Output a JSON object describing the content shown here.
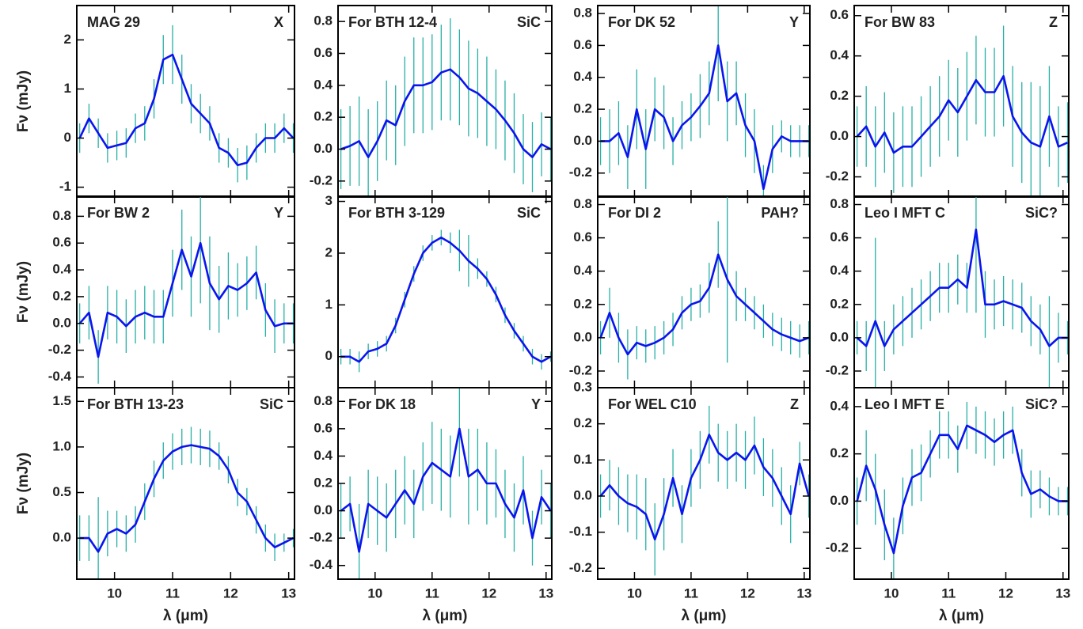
{
  "chart_data": [
    {
      "type": "line",
      "title": "MAG 29",
      "annotation": "X",
      "ylabel": "Fν (mJy)",
      "color": "#0a14ee",
      "error_color": "#27b0a6",
      "x": [
        9.4,
        9.56,
        9.72,
        9.88,
        10.04,
        10.2,
        10.36,
        10.52,
        10.68,
        10.84,
        11.0,
        11.16,
        11.32,
        11.48,
        11.64,
        11.8,
        11.96,
        12.12,
        12.28,
        12.44,
        12.6,
        12.76,
        12.92,
        13.08
      ],
      "values": [
        0,
        0.4,
        0.1,
        -0.2,
        -0.15,
        -0.1,
        0.2,
        0.3,
        0.8,
        1.6,
        1.7,
        1.2,
        0.7,
        0.5,
        0.3,
        -0.2,
        -0.3,
        -0.55,
        -0.5,
        -0.2,
        0,
        0,
        0.2,
        0
      ],
      "errors": [
        0.3,
        0.3,
        0.3,
        0.3,
        0.3,
        0.3,
        0.3,
        0.35,
        0.4,
        0.5,
        0.6,
        0.5,
        0.4,
        0.4,
        0.35,
        0.3,
        0.3,
        0.35,
        0.35,
        0.3,
        0.3,
        0.3,
        0.3,
        0.3
      ],
      "xlim": [
        9.35,
        13.1
      ],
      "xticks": [
        10,
        11,
        12,
        13
      ],
      "ylim": [
        -1.2,
        2.7
      ],
      "yticks": [
        -1,
        0,
        1,
        2
      ]
    },
    {
      "type": "line",
      "title": "For BTH 12-4",
      "annotation": "SiC",
      "color": "#0a14ee",
      "error_color": "#27b0a6",
      "x": [
        9.4,
        9.56,
        9.72,
        9.88,
        10.04,
        10.2,
        10.36,
        10.52,
        10.68,
        10.84,
        11.0,
        11.16,
        11.32,
        11.48,
        11.64,
        11.8,
        11.96,
        12.12,
        12.28,
        12.44,
        12.6,
        12.76,
        12.92,
        13.08
      ],
      "values": [
        0,
        0.02,
        0.05,
        -0.05,
        0.05,
        0.18,
        0.15,
        0.3,
        0.4,
        0.4,
        0.42,
        0.48,
        0.5,
        0.45,
        0.38,
        0.35,
        0.3,
        0.25,
        0.18,
        0.1,
        0,
        -0.05,
        0.03,
        0
      ],
      "errors": [
        0.25,
        0.25,
        0.28,
        0.3,
        0.25,
        0.25,
        0.25,
        0.28,
        0.3,
        0.3,
        0.3,
        0.3,
        0.32,
        0.3,
        0.3,
        0.28,
        0.28,
        0.25,
        0.25,
        0.25,
        0.22,
        0.22,
        0.2,
        0.2
      ],
      "xlim": [
        9.35,
        13.1
      ],
      "xticks": [
        10,
        11,
        12,
        13
      ],
      "ylim": [
        -0.3,
        0.9
      ],
      "yticks": [
        -0.2,
        {
          "value": 0,
          "label": "0.0"
        },
        0.2,
        0.4,
        0.6,
        0.8
      ]
    },
    {
      "type": "line",
      "title": "For DK 52",
      "annotation": "Y",
      "color": "#0a14ee",
      "error_color": "#27b0a6",
      "x": [
        9.4,
        9.56,
        9.72,
        9.88,
        10.04,
        10.2,
        10.36,
        10.52,
        10.68,
        10.84,
        11.0,
        11.16,
        11.32,
        11.48,
        11.64,
        11.8,
        11.96,
        12.12,
        12.28,
        12.44,
        12.6,
        12.76,
        12.92,
        13.08
      ],
      "values": [
        0,
        0,
        0.05,
        -0.1,
        0.2,
        -0.05,
        0.2,
        0.15,
        0,
        0.1,
        0.15,
        0.22,
        0.3,
        0.6,
        0.25,
        0.3,
        0.1,
        0,
        -0.3,
        -0.05,
        0.03,
        0,
        0,
        0
      ],
      "errors": [
        0.15,
        0.2,
        0.2,
        0.2,
        0.25,
        0.25,
        0.2,
        0.2,
        0.15,
        0.15,
        0.15,
        0.2,
        0.2,
        0.35,
        0.25,
        0.2,
        0.2,
        0.2,
        0.15,
        0.15,
        0.1,
        0.1,
        0.1,
        0.1
      ],
      "xlim": [
        9.35,
        13.1
      ],
      "xticks": [
        10,
        11,
        12,
        13
      ],
      "ylim": [
        -0.35,
        0.85
      ],
      "yticks": [
        -0.2,
        {
          "value": 0,
          "label": "0.0"
        },
        0.2,
        0.4,
        0.6,
        0.8
      ]
    },
    {
      "type": "line",
      "title": "For BW 83",
      "annotation": "Z",
      "color": "#0a14ee",
      "error_color": "#27b0a6",
      "x": [
        9.4,
        9.56,
        9.72,
        9.88,
        10.04,
        10.2,
        10.36,
        10.52,
        10.68,
        10.84,
        11.0,
        11.16,
        11.32,
        11.48,
        11.64,
        11.8,
        11.96,
        12.12,
        12.28,
        12.44,
        12.6,
        12.76,
        12.92,
        13.08
      ],
      "values": [
        0,
        0.05,
        -0.05,
        0.02,
        -0.08,
        -0.05,
        -0.05,
        0,
        0.05,
        0.1,
        0.18,
        0.12,
        0.2,
        0.28,
        0.22,
        0.22,
        0.3,
        0.1,
        0.02,
        -0.03,
        -0.05,
        0.1,
        -0.05,
        -0.03
      ],
      "errors": [
        0.15,
        0.2,
        0.2,
        0.2,
        0.2,
        0.2,
        0.2,
        0.2,
        0.2,
        0.2,
        0.2,
        0.22,
        0.22,
        0.22,
        0.22,
        0.22,
        0.25,
        0.25,
        0.25,
        0.3,
        0.3,
        0.25,
        0.2,
        0.2
      ],
      "xlim": [
        9.35,
        13.1
      ],
      "xticks": [
        10,
        11,
        12,
        13
      ],
      "ylim": [
        -0.3,
        0.65
      ],
      "yticks": [
        -0.2,
        {
          "value": 0,
          "label": "0.0"
        },
        0.2,
        0.4,
        0.6
      ]
    },
    {
      "type": "line",
      "title": "For BW 2",
      "annotation": "Y",
      "ylabel": "Fν (mJy)",
      "color": "#0a14ee",
      "error_color": "#27b0a6",
      "x": [
        9.4,
        9.56,
        9.72,
        9.88,
        10.04,
        10.2,
        10.36,
        10.52,
        10.68,
        10.84,
        11.0,
        11.16,
        11.32,
        11.48,
        11.64,
        11.8,
        11.96,
        12.12,
        12.28,
        12.44,
        12.6,
        12.76,
        12.92,
        13.08
      ],
      "values": [
        0,
        0.08,
        -0.25,
        0.08,
        0.05,
        -0.02,
        0.05,
        0.08,
        0.05,
        0.05,
        0.3,
        0.55,
        0.35,
        0.6,
        0.3,
        0.18,
        0.28,
        0.25,
        0.3,
        0.38,
        0.1,
        -0.02,
        0,
        0
      ],
      "errors": [
        0.15,
        0.2,
        0.2,
        0.2,
        0.2,
        0.2,
        0.2,
        0.2,
        0.2,
        0.2,
        0.25,
        0.3,
        0.3,
        0.45,
        0.35,
        0.25,
        0.25,
        0.2,
        0.2,
        0.2,
        0.2,
        0.2,
        0.15,
        0.15
      ],
      "xlim": [
        9.35,
        13.1
      ],
      "xticks": [
        10,
        11,
        12,
        13
      ],
      "ylim": [
        -0.48,
        0.95
      ],
      "yticks": [
        -0.4,
        -0.2,
        {
          "value": 0,
          "label": "0.0"
        },
        0.2,
        0.4,
        0.6,
        0.8
      ]
    },
    {
      "type": "line",
      "title": "For BTH 3-129",
      "annotation": "SiC",
      "color": "#0a14ee",
      "error_color": "#27b0a6",
      "x": [
        9.4,
        9.56,
        9.72,
        9.88,
        10.04,
        10.2,
        10.36,
        10.52,
        10.68,
        10.84,
        11.0,
        11.16,
        11.32,
        11.48,
        11.64,
        11.8,
        11.96,
        12.12,
        12.28,
        12.44,
        12.6,
        12.76,
        12.92,
        13.08
      ],
      "values": [
        0,
        0,
        -0.1,
        0.1,
        0.15,
        0.25,
        0.6,
        1.1,
        1.6,
        2.0,
        2.2,
        2.3,
        2.2,
        2.05,
        1.85,
        1.7,
        1.5,
        1.2,
        0.8,
        0.5,
        0.25,
        0,
        -0.1,
        0
      ],
      "errors": [
        0.15,
        0.15,
        0.2,
        0.15,
        0.15,
        0.15,
        0.15,
        0.15,
        0.15,
        0.15,
        0.15,
        0.15,
        0.2,
        0.4,
        0.5,
        0.2,
        0.15,
        0.15,
        0.15,
        0.15,
        0.15,
        0.15,
        0.15,
        0.1
      ],
      "xlim": [
        9.35,
        13.1
      ],
      "xticks": [
        10,
        11,
        12,
        13
      ],
      "ylim": [
        -0.6,
        3.1
      ],
      "yticks": [
        0,
        1,
        2,
        3
      ]
    },
    {
      "type": "line",
      "title": "For DI 2",
      "annotation": "PAH?",
      "color": "#0a14ee",
      "error_color": "#27b0a6",
      "x": [
        9.4,
        9.56,
        9.72,
        9.88,
        10.04,
        10.2,
        10.36,
        10.52,
        10.68,
        10.84,
        11.0,
        11.16,
        11.32,
        11.48,
        11.64,
        11.8,
        11.96,
        12.12,
        12.28,
        12.44,
        12.6,
        12.76,
        12.92,
        13.08
      ],
      "values": [
        0,
        0.15,
        0,
        -0.1,
        -0.03,
        -0.05,
        -0.03,
        0,
        0.05,
        0.15,
        0.2,
        0.22,
        0.3,
        0.5,
        0.35,
        0.25,
        0.2,
        0.15,
        0.1,
        0.05,
        0.02,
        0,
        -0.02,
        0
      ],
      "errors": [
        0.1,
        0.15,
        0.15,
        0.15,
        0.1,
        0.1,
        0.1,
        0.1,
        0.1,
        0.1,
        0.1,
        0.1,
        0.15,
        0.2,
        0.5,
        0.15,
        0.1,
        0.1,
        0.1,
        0.1,
        0.1,
        0.1,
        0.1,
        0.1
      ],
      "xlim": [
        9.35,
        13.1
      ],
      "xticks": [
        10,
        11,
        12,
        13
      ],
      "ylim": [
        -0.3,
        0.85
      ],
      "yticks": [
        -0.2,
        {
          "value": 0,
          "label": "0.0"
        },
        0.2,
        0.4,
        0.6,
        0.8
      ]
    },
    {
      "type": "line",
      "title": "Leo I MFT C",
      "annotation": "SiC?",
      "color": "#0a14ee",
      "error_color": "#27b0a6",
      "x": [
        9.4,
        9.56,
        9.72,
        9.88,
        10.04,
        10.2,
        10.36,
        10.52,
        10.68,
        10.84,
        11.0,
        11.16,
        11.32,
        11.48,
        11.64,
        11.8,
        11.96,
        12.12,
        12.28,
        12.44,
        12.6,
        12.76,
        12.92,
        13.08
      ],
      "values": [
        0,
        -0.05,
        0.1,
        -0.05,
        0.05,
        0.1,
        0.15,
        0.2,
        0.25,
        0.3,
        0.3,
        0.35,
        0.3,
        0.65,
        0.2,
        0.2,
        0.22,
        0.2,
        0.18,
        0.1,
        0.05,
        -0.05,
        0,
        0
      ],
      "errors": [
        0.1,
        0.15,
        0.5,
        0.15,
        0.15,
        0.15,
        0.15,
        0.15,
        0.15,
        0.15,
        0.15,
        0.15,
        0.15,
        0.5,
        0.2,
        0.15,
        0.15,
        0.15,
        0.15,
        0.15,
        0.15,
        0.3,
        0.15,
        0.1
      ],
      "xlim": [
        9.35,
        13.1
      ],
      "xticks": [
        10,
        11,
        12,
        13
      ],
      "ylim": [
        -0.3,
        0.85
      ],
      "yticks": [
        -0.2,
        {
          "value": 0,
          "label": "0.0"
        },
        0.2,
        0.4,
        0.6,
        0.8
      ]
    },
    {
      "type": "line",
      "title": "For BTH 13-23",
      "annotation": "SiC",
      "ylabel": "Fν (mJy)",
      "xlabel": "λ (μm)",
      "color": "#0a14ee",
      "error_color": "#27b0a6",
      "x": [
        9.4,
        9.56,
        9.72,
        9.88,
        10.04,
        10.2,
        10.36,
        10.52,
        10.68,
        10.84,
        11.0,
        11.16,
        11.32,
        11.48,
        11.64,
        11.8,
        11.96,
        12.12,
        12.28,
        12.44,
        12.6,
        12.76,
        12.92,
        13.08
      ],
      "values": [
        0,
        0,
        -0.15,
        0.05,
        0.1,
        0.05,
        0.15,
        0.4,
        0.65,
        0.85,
        0.95,
        1.0,
        1.02,
        1.0,
        0.98,
        0.9,
        0.75,
        0.5,
        0.4,
        0.2,
        0,
        -0.1,
        -0.05,
        0
      ],
      "errors": [
        0.25,
        0.25,
        0.6,
        0.25,
        0.2,
        0.2,
        0.2,
        0.2,
        0.2,
        0.2,
        0.2,
        0.2,
        0.2,
        0.2,
        0.2,
        0.15,
        0.15,
        0.15,
        0.15,
        0.15,
        0.15,
        0.15,
        0.1,
        0.1
      ],
      "xlim": [
        9.35,
        13.1
      ],
      "xticks": [
        10,
        11,
        12,
        13
      ],
      "ylim": [
        -0.45,
        1.65
      ],
      "yticks": [
        {
          "value": 0,
          "label": "0.0"
        },
        0.5,
        {
          "value": 1,
          "label": "1.0"
        },
        1.5
      ]
    },
    {
      "type": "line",
      "title": "For DK 18",
      "annotation": "Y",
      "xlabel": "λ (μm)",
      "color": "#0a14ee",
      "error_color": "#27b0a6",
      "x": [
        9.4,
        9.56,
        9.72,
        9.88,
        10.04,
        10.2,
        10.36,
        10.52,
        10.68,
        10.84,
        11.0,
        11.16,
        11.32,
        11.48,
        11.64,
        11.8,
        11.96,
        12.12,
        12.28,
        12.44,
        12.6,
        12.76,
        12.92,
        13.08
      ],
      "values": [
        0,
        0.05,
        -0.3,
        0.05,
        0,
        -0.05,
        0.05,
        0.15,
        0.05,
        0.25,
        0.35,
        0.3,
        0.25,
        0.6,
        0.25,
        0.3,
        0.2,
        0.2,
        0.05,
        -0.05,
        0.15,
        -0.2,
        0.1,
        0
      ],
      "errors": [
        0.2,
        0.2,
        0.35,
        0.25,
        0.25,
        0.25,
        0.25,
        0.25,
        0.25,
        0.25,
        0.3,
        0.3,
        0.3,
        0.35,
        0.35,
        0.3,
        0.3,
        0.25,
        0.25,
        0.25,
        0.25,
        0.2,
        0.2,
        0.2
      ],
      "xlim": [
        9.35,
        13.1
      ],
      "xticks": [
        10,
        11,
        12,
        13
      ],
      "ylim": [
        -0.5,
        0.9
      ],
      "yticks": [
        -0.4,
        -0.2,
        {
          "value": 0,
          "label": "0.0"
        },
        0.2,
        0.4,
        0.6,
        0.8
      ]
    },
    {
      "type": "line",
      "title": "For WEL C10",
      "annotation": "Z",
      "xlabel": "λ (μm)",
      "color": "#0a14ee",
      "error_color": "#27b0a6",
      "x": [
        9.4,
        9.56,
        9.72,
        9.88,
        10.04,
        10.2,
        10.36,
        10.52,
        10.68,
        10.84,
        11.0,
        11.16,
        11.32,
        11.48,
        11.64,
        11.8,
        11.96,
        12.12,
        12.28,
        12.44,
        12.6,
        12.76,
        12.92,
        13.08
      ],
      "values": [
        0,
        0.03,
        0,
        -0.02,
        -0.03,
        -0.05,
        -0.12,
        -0.05,
        0.05,
        -0.05,
        0.05,
        0.1,
        0.17,
        0.12,
        0.1,
        0.12,
        0.1,
        0.14,
        0.08,
        0.05,
        0,
        -0.05,
        0.09,
        0
      ],
      "errors": [
        0.06,
        0.07,
        0.08,
        0.08,
        0.09,
        0.1,
        0.1,
        0.1,
        0.08,
        0.08,
        0.08,
        0.08,
        0.08,
        0.08,
        0.08,
        0.08,
        0.08,
        0.08,
        0.08,
        0.08,
        0.08,
        0.08,
        0.06,
        0.06
      ],
      "xlim": [
        9.35,
        13.1
      ],
      "xticks": [
        10,
        11,
        12,
        13
      ],
      "ylim": [
        -0.23,
        0.3
      ],
      "yticks": [
        -0.2,
        -0.1,
        {
          "value": 0,
          "label": "0.0"
        },
        0.1,
        0.2,
        0.3
      ]
    },
    {
      "type": "line",
      "title": "Leo I MFT E",
      "annotation": "SiC?",
      "xlabel": "λ (μm)",
      "color": "#0a14ee",
      "error_color": "#27b0a6",
      "x": [
        9.4,
        9.56,
        9.72,
        9.88,
        10.04,
        10.2,
        10.36,
        10.52,
        10.68,
        10.84,
        11.0,
        11.16,
        11.32,
        11.48,
        11.64,
        11.8,
        11.96,
        12.12,
        12.28,
        12.44,
        12.6,
        12.76,
        12.92,
        13.08
      ],
      "values": [
        0,
        0.15,
        0.05,
        -0.1,
        -0.22,
        -0.02,
        0.1,
        0.12,
        0.2,
        0.28,
        0.28,
        0.22,
        0.32,
        0.3,
        0.28,
        0.25,
        0.28,
        0.3,
        0.12,
        0.03,
        0.05,
        0.02,
        0,
        0
      ],
      "errors": [
        0.1,
        0.15,
        0.15,
        0.15,
        0.15,
        0.12,
        0.12,
        0.12,
        0.1,
        0.1,
        0.1,
        0.1,
        0.1,
        0.1,
        0.1,
        0.1,
        0.1,
        0.1,
        0.1,
        0.1,
        0.08,
        0.08,
        0.06,
        0.06
      ],
      "xlim": [
        9.35,
        13.1
      ],
      "xticks": [
        10,
        11,
        12,
        13
      ],
      "ylim": [
        -0.33,
        0.48
      ],
      "yticks": [
        -0.2,
        {
          "value": 0,
          "label": "0.0"
        },
        0.2,
        0.4
      ]
    }
  ]
}
